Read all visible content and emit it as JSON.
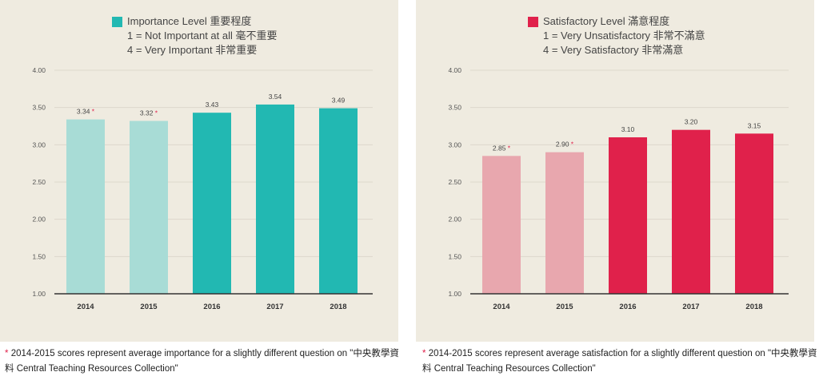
{
  "colors": {
    "importance_dim": "#a8dcd6",
    "importance": "#22b8b2",
    "satisfaction_dim": "#e8a7ae",
    "satisfaction": "#e0214b",
    "asterisk": "#e0214b"
  },
  "chart_data": [
    {
      "type": "bar",
      "title": "Importance Level 重要程度",
      "subtitle_lines": [
        "1 = Not Important at all 毫不重要",
        "4 = Very Important 非常重要"
      ],
      "categories": [
        "2014",
        "2015",
        "2016",
        "2017",
        "2018"
      ],
      "values": [
        3.34,
        3.32,
        3.43,
        3.54,
        3.49
      ],
      "value_labels": [
        "3.34",
        "3.32",
        "3.43",
        "3.54",
        "3.49"
      ],
      "asterisk": [
        true,
        true,
        false,
        false,
        false
      ],
      "ylim": [
        1.0,
        4.0
      ],
      "yticks": [
        "1.00",
        "1.50",
        "2.00",
        "2.50",
        "3.00",
        "3.50",
        "4.00"
      ],
      "grid": true,
      "legend": "top"
    },
    {
      "type": "bar",
      "title": "Satisfactory Level 滿意程度",
      "subtitle_lines": [
        "1 = Very Unsatisfactory 非常不滿意",
        "4 = Very Satisfactory 非常滿意"
      ],
      "categories": [
        "2014",
        "2015",
        "2016",
        "2017",
        "2018"
      ],
      "values": [
        2.85,
        2.9,
        3.1,
        3.2,
        3.15
      ],
      "value_labels": [
        "2.85",
        "2.90",
        "3.10",
        "3.20",
        "3.15"
      ],
      "asterisk": [
        true,
        true,
        false,
        false,
        false
      ],
      "ylim": [
        1.0,
        4.0
      ],
      "yticks": [
        "1.00",
        "1.50",
        "2.00",
        "2.50",
        "3.00",
        "3.50",
        "4.00"
      ],
      "grid": true,
      "legend": "top"
    }
  ],
  "footnotes": {
    "asterisk": "*",
    "left": "2014-2015 scores represent average importance for a slightly different question on \"中央教學資料 Central Teaching Resources Collection\"",
    "right": "2014-2015 scores represent average satisfaction for a slightly different question on \"中央教學資料 Central Teaching Resources Collection\""
  }
}
